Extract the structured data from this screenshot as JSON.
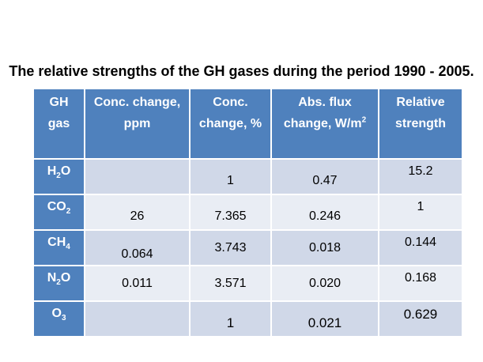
{
  "title": "The relative strengths of the GH gases during the period 1990 - 2005.",
  "colors": {
    "header_bg": "#4f81bd",
    "row_dark": "#d0d8e8",
    "row_light": "#e9edf4",
    "header_text": "#ffffff"
  },
  "table": {
    "headers": [
      {
        "line1": "GH",
        "line2": "gas"
      },
      {
        "line1": "Conc. change,",
        "line2": "ppm"
      },
      {
        "line1": "Conc.",
        "line2": "change, %"
      },
      {
        "line1": "Abs. flux",
        "line2_prefix": "change, W/m",
        "line2_sup": "2"
      },
      {
        "line1": "Relative",
        "line2": "strength"
      }
    ],
    "rows": [
      {
        "gas_base": "H",
        "gas_sub": "2",
        "gas_tail": "O",
        "ppm": "",
        "pct": "1",
        "flux": "0.47",
        "strength": "15.2"
      },
      {
        "gas_base": "CO",
        "gas_sub": "2",
        "gas_tail": "",
        "ppm": "26",
        "pct": "7.365",
        "flux": "0.246",
        "strength": "1"
      },
      {
        "gas_base": "CH",
        "gas_sub": "4",
        "gas_tail": "",
        "ppm": "0.064",
        "pct": "3.743",
        "flux": "0.018",
        "strength": "0.144"
      },
      {
        "gas_base": "N",
        "gas_sub": "2",
        "gas_tail": "O",
        "ppm": "0.011",
        "pct": "3.571",
        "flux": "0.020",
        "strength": "0.168"
      },
      {
        "gas_base": "O",
        "gas_sub": "3",
        "gas_tail": "",
        "ppm": "",
        "pct": "1",
        "flux": "0.021",
        "strength": "0.629"
      }
    ]
  }
}
